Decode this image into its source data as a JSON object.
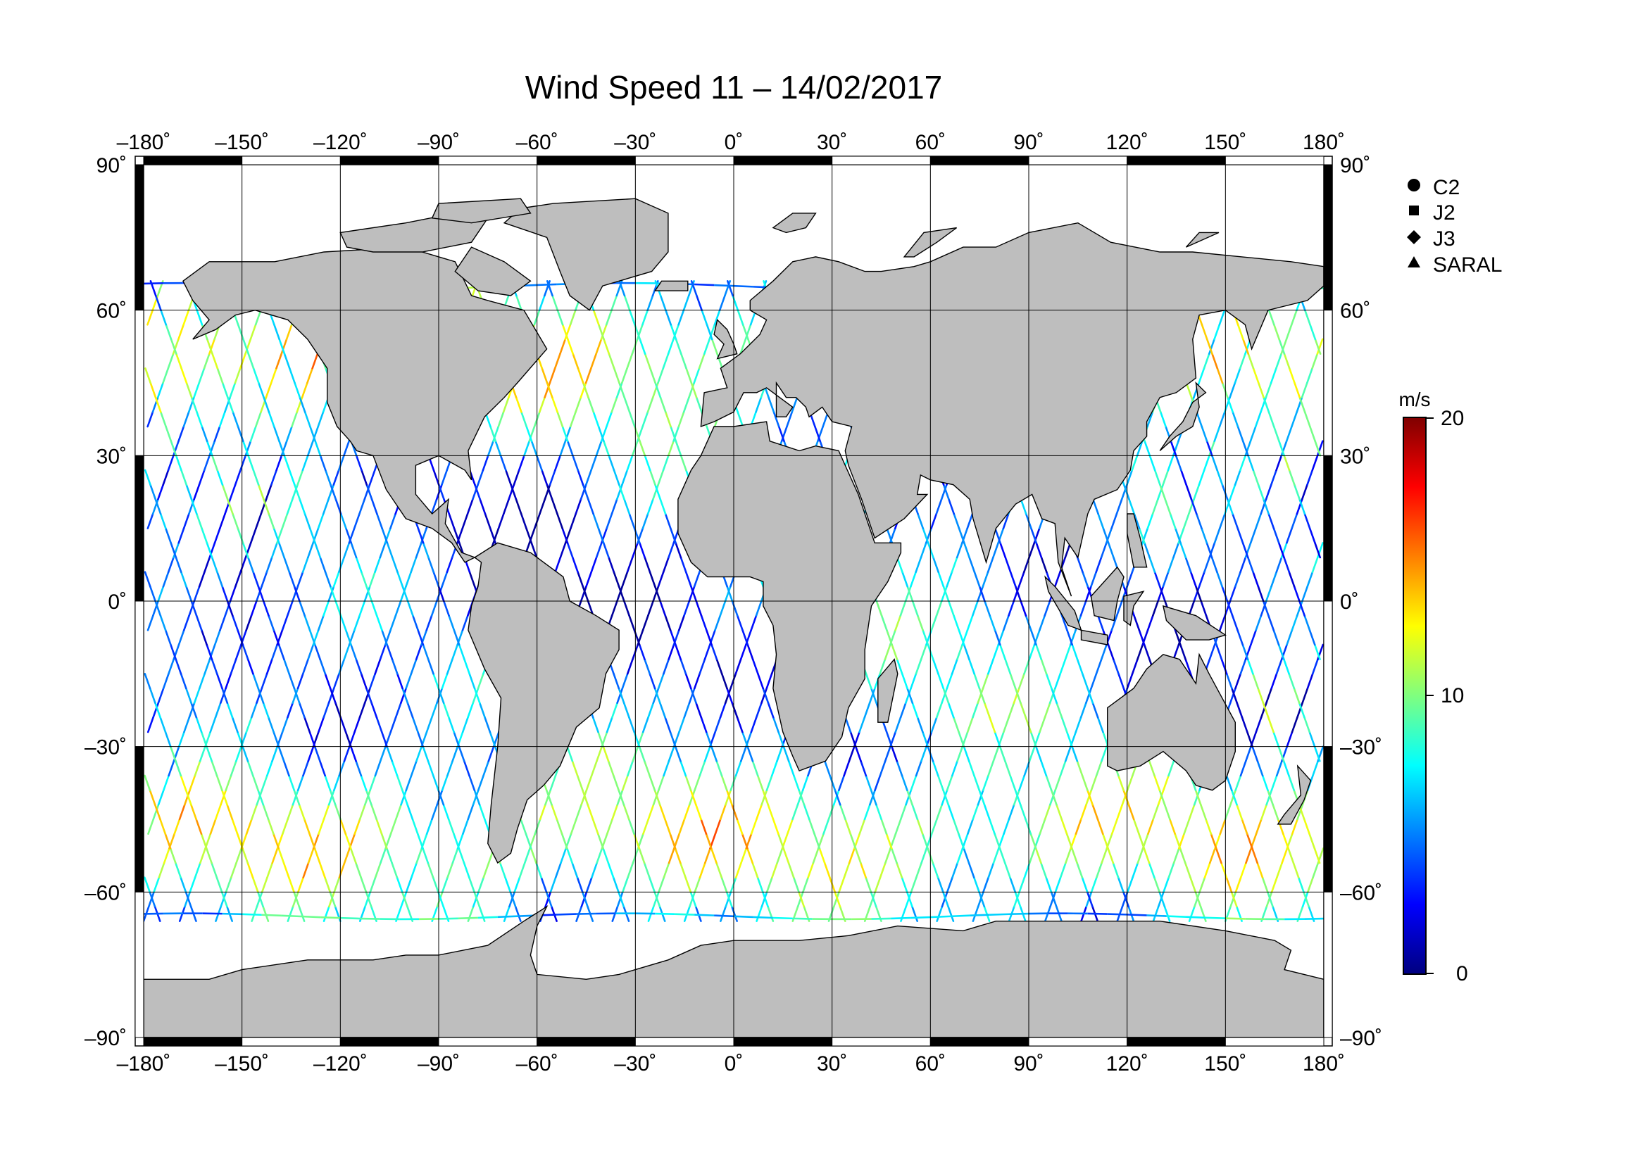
{
  "title": "Wind Speed 11 – 14/02/2017",
  "lon_ticks": [
    "–180˚",
    "–150˚",
    "–120˚",
    "–90˚",
    "–60˚",
    "–30˚",
    "0˚",
    "30˚",
    "60˚",
    "90˚",
    "120˚",
    "150˚",
    "180˚"
  ],
  "lat_ticks": [
    "90˚",
    "60˚",
    "30˚",
    "0˚",
    "–30˚",
    "–60˚",
    "–90˚"
  ],
  "legend": {
    "items": [
      {
        "label": "C2",
        "icon": "circle-icon"
      },
      {
        "label": "J2",
        "icon": "square-icon"
      },
      {
        "label": "J3",
        "icon": "diamond-icon"
      },
      {
        "label": "SARAL",
        "icon": "triangle-icon"
      }
    ]
  },
  "colorbar": {
    "unit": "m/s",
    "tick_labels": [
      "20",
      "10",
      "0"
    ],
    "min": 0,
    "max": 20,
    "colormap": [
      "#00007f",
      "#0000ff",
      "#007fff",
      "#00ffff",
      "#7fff7f",
      "#ffff00",
      "#ff7f00",
      "#ff0000",
      "#7f0000"
    ]
  },
  "colors": {
    "land": "#bebebe",
    "coast": "#000000",
    "grid": "#000000",
    "frame_dark": "#000000",
    "frame_light": "#ffffff"
  },
  "chart_data": {
    "type": "map",
    "projection": "equirectangular",
    "lon_range": [
      -180,
      180
    ],
    "lat_range": [
      -90,
      90
    ],
    "variable_unit": "m/s",
    "value_range": [
      0,
      20
    ],
    "tracks_lat_range": [
      -66,
      66
    ]
  }
}
